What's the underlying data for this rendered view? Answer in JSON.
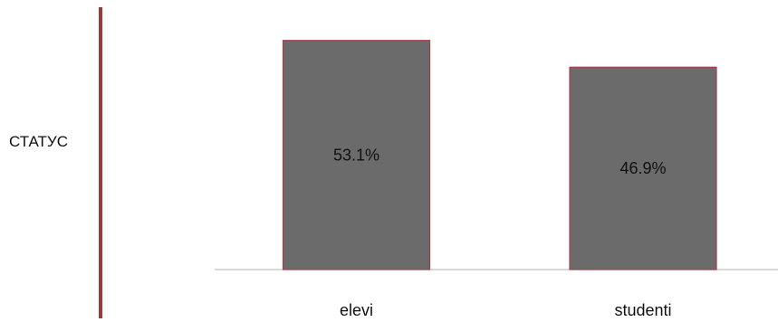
{
  "side_label": "СТАТУС",
  "colors": {
    "bar_fill": "#6b6b6b",
    "bar_stroke": "#a0404a",
    "divider": "#9b3a3a",
    "axis": "#c0c0c0",
    "text": "#111111"
  },
  "chart_data": {
    "type": "bar",
    "categories": [
      "elevi",
      "studenti"
    ],
    "values": [
      53.1,
      46.9
    ],
    "data_labels": [
      "53.1%",
      "46.9%"
    ],
    "title": "",
    "xlabel": "",
    "ylabel": "",
    "grid": false,
    "legend": "none"
  }
}
